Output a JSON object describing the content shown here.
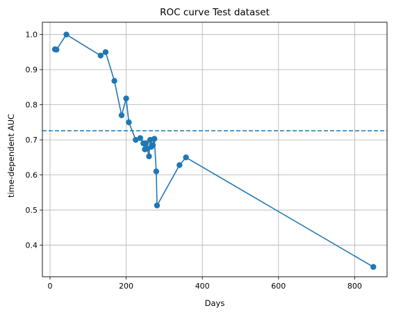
{
  "chart_data": {
    "type": "line",
    "title": "ROC curve Test dataset",
    "xlabel": "Days",
    "ylabel": "time-dependent AUC",
    "xlim": [
      -20,
      885
    ],
    "ylim": [
      0.31,
      1.035
    ],
    "x_ticks": [
      0,
      200,
      400,
      600,
      800
    ],
    "x_tick_labels": [
      "0",
      "200",
      "400",
      "600",
      "800"
    ],
    "y_ticks": [
      0.4,
      0.5,
      0.6,
      0.7,
      0.8,
      0.9,
      1.0
    ],
    "y_tick_labels": [
      "0.4",
      "0.5",
      "0.6",
      "0.7",
      "0.8",
      "0.9",
      "1.0"
    ],
    "grid": true,
    "line_color": "#1f77b4",
    "series": [
      {
        "x": [
          13,
          17,
          43,
          133,
          146,
          169,
          188,
          200,
          207,
          225,
          237,
          245,
          249,
          252,
          255,
          260,
          263,
          266,
          270,
          274,
          279,
          281,
          340,
          357,
          849
        ],
        "y": [
          0.958,
          0.957,
          1.0,
          0.94,
          0.95,
          0.868,
          0.77,
          0.818,
          0.75,
          0.7,
          0.705,
          0.69,
          0.673,
          0.69,
          0.675,
          0.653,
          0.7,
          0.68,
          0.685,
          0.703,
          0.61,
          0.513,
          0.628,
          0.65,
          0.338
        ]
      }
    ],
    "reference_line": {
      "y": 0.726,
      "style": "dashed"
    }
  }
}
